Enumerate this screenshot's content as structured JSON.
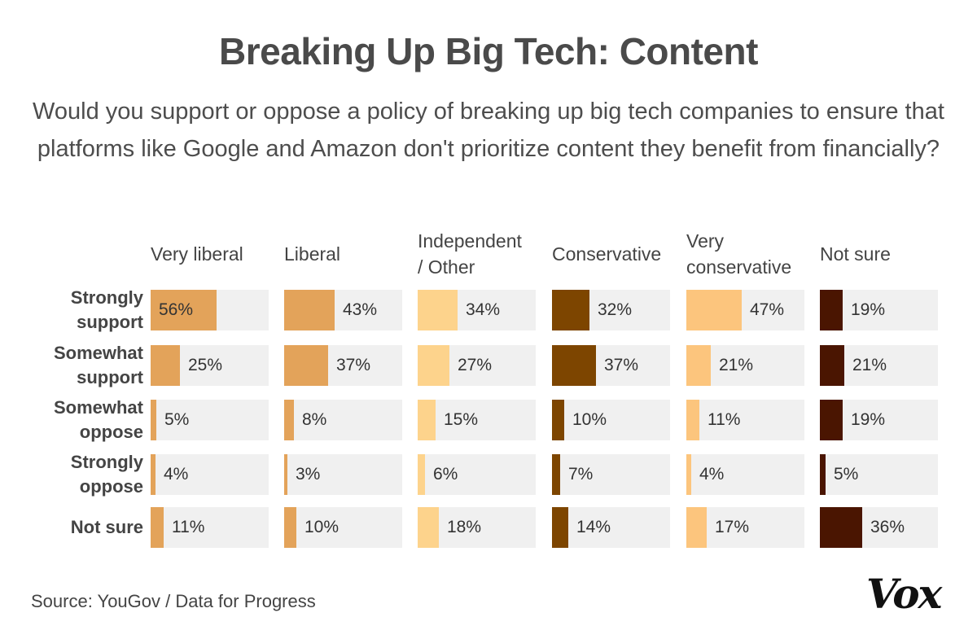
{
  "title": "Breaking Up Big Tech: Content",
  "subtitle": "Would you support or oppose a policy of breaking up big tech companies to ensure that platforms like Google and Amazon don't prioritize content they benefit from financially?",
  "source": "Source: YouGov / Data for Progress",
  "logo": "Vox",
  "chart_data": {
    "type": "bar",
    "layout": "small-multiples-horizontal",
    "title": "Breaking Up Big Tech: Content",
    "columns": [
      "Very liberal",
      "Liberal",
      "Independent / Other",
      "Conservative",
      "Very conservative",
      "Not sure"
    ],
    "column_headers_display": [
      [
        "Very liberal"
      ],
      [
        "Liberal"
      ],
      [
        "Independent",
        "/ Other"
      ],
      [
        "Conservative"
      ],
      [
        "Very",
        "conservative"
      ],
      [
        "Not sure"
      ]
    ],
    "rows": [
      "Strongly support",
      "Somewhat support",
      "Somewhat oppose",
      "Strongly oppose",
      "Not sure"
    ],
    "row_labels_display": [
      [
        "Strongly",
        "support"
      ],
      [
        "Somewhat",
        "support"
      ],
      [
        "Somewhat",
        "oppose"
      ],
      [
        "Strongly",
        "oppose"
      ],
      [
        "Not sure"
      ]
    ],
    "series": [
      {
        "name": "Very liberal",
        "color": "#e3a35a",
        "values": [
          56,
          25,
          5,
          4,
          11
        ]
      },
      {
        "name": "Liberal",
        "color": "#e3a35a",
        "values": [
          43,
          37,
          8,
          3,
          10
        ]
      },
      {
        "name": "Independent / Other",
        "color": "#fdd38c",
        "values": [
          34,
          27,
          15,
          6,
          18
        ]
      },
      {
        "name": "Conservative",
        "color": "#7d4500",
        "values": [
          32,
          37,
          10,
          7,
          14
        ]
      },
      {
        "name": "Very conservative",
        "color": "#fcc57d",
        "values": [
          47,
          21,
          11,
          4,
          17
        ]
      },
      {
        "name": "Not sure",
        "color": "#4a1501",
        "values": [
          19,
          21,
          19,
          5,
          36
        ]
      }
    ],
    "value_suffix": "%",
    "xlim": [
      0,
      100
    ],
    "background_color": "#f0f0f0"
  }
}
